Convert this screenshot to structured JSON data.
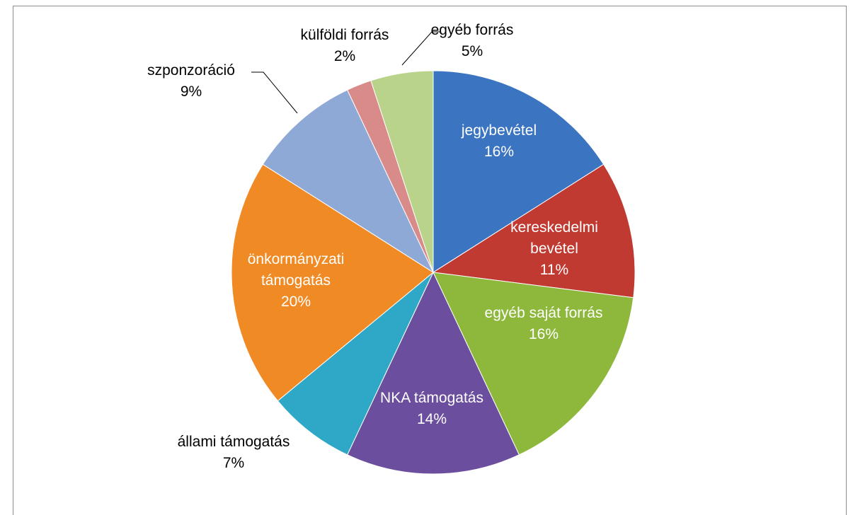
{
  "chart_data": {
    "type": "pie",
    "categories": [
      "jegybevétel",
      "kereskedelmi bevétel",
      "egyéb saját forrás",
      "NKA támogatás",
      "állami támogatás",
      "önkormányzati támogatás",
      "szponzoráció",
      "külföldi forrás",
      "egyéb forrás"
    ],
    "values": [
      16,
      11,
      16,
      14,
      7,
      20,
      9,
      2,
      5
    ],
    "value_labels": [
      "16%",
      "11%",
      "16%",
      "14%",
      "7%",
      "20%",
      "9%",
      "2%",
      "5%"
    ],
    "colors": [
      "#3b74c1",
      "#c13a32",
      "#8db83c",
      "#6b4e9d",
      "#2fa8c7",
      "#f08a24",
      "#8fa9d6",
      "#d98b8a",
      "#bad38b"
    ]
  }
}
